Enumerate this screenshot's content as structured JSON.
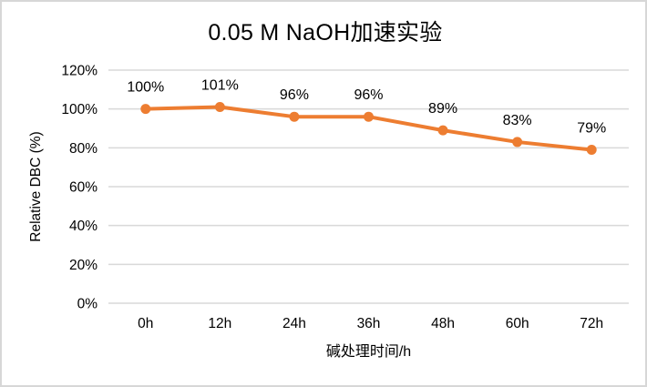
{
  "chart": {
    "title": "0.05 M NaOH加速实验",
    "x_axis_title": "碱处理时间/h",
    "y_axis_title": "Relative DBC (%)"
  },
  "chart_data": {
    "type": "line",
    "title": "0.05 M NaOH加速实验",
    "xlabel": "碱处理时间/h",
    "ylabel": "Relative DBC (%)",
    "categories": [
      "0h",
      "12h",
      "24h",
      "36h",
      "48h",
      "60h",
      "72h"
    ],
    "values": [
      100,
      101,
      96,
      96,
      89,
      83,
      79
    ],
    "data_labels": [
      "100%",
      "101%",
      "96%",
      "96%",
      "89%",
      "83%",
      "79%"
    ],
    "ylim": [
      0,
      120
    ],
    "ytick_step": 20,
    "ytick_labels": [
      "0%",
      "20%",
      "40%",
      "60%",
      "80%",
      "100%",
      "120%"
    ],
    "grid": true,
    "legend_position": "none",
    "marker": "circle",
    "colors": {
      "series": "#ED7D31",
      "grid": "#D9D9D9",
      "text": "#000000",
      "frame_border": "#D7D7D7",
      "background": "#FFFFFF"
    }
  }
}
